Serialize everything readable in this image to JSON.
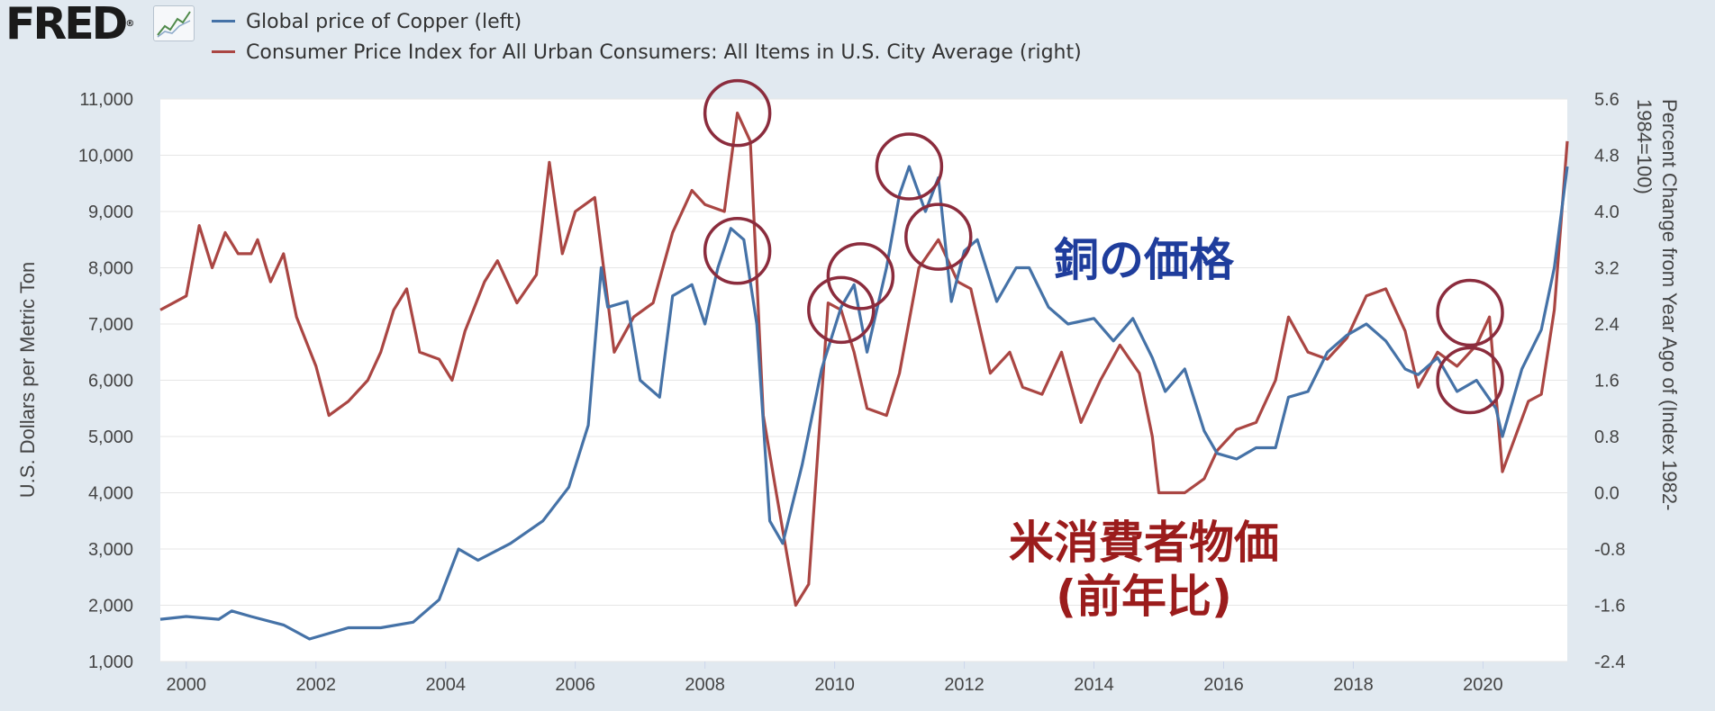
{
  "logo": {
    "text": "FRED",
    "reg": "®"
  },
  "legend": [
    {
      "label": "Global price of Copper (left)",
      "color": "#4572a7"
    },
    {
      "label": "Consumer Price Index for All Urban Consumers: All Items in U.S. City Average (right)",
      "color": "#aa4643"
    }
  ],
  "chart_data": {
    "type": "line",
    "x_ticks": [
      "2000",
      "2002",
      "2004",
      "2006",
      "2008",
      "2010",
      "2012",
      "2014",
      "2016",
      "2018",
      "2020"
    ],
    "xlim": [
      1999.6,
      2021.3
    ],
    "left_axis": {
      "title": "U.S. Dollars per Metric Ton",
      "ylim": [
        1000,
        11000
      ],
      "ticks": [
        "1,000",
        "2,000",
        "3,000",
        "4,000",
        "5,000",
        "6,000",
        "7,000",
        "8,000",
        "9,000",
        "10,000",
        "11,000"
      ]
    },
    "right_axis": {
      "title_line1": "Percent Change from Year Ago of (Index 1982-",
      "title_line2": "1984=100)",
      "ylim": [
        -2.4,
        5.6
      ],
      "ticks": [
        "-2.4",
        "-1.6",
        "-0.8",
        "0.0",
        "0.8",
        "1.6",
        "2.4",
        "3.2",
        "4.0",
        "4.8",
        "5.6"
      ]
    },
    "series": [
      {
        "name": "Global price of Copper (left)",
        "axis": "left",
        "color": "#4572a7",
        "points": [
          [
            1999.6,
            1750
          ],
          [
            2000.0,
            1800
          ],
          [
            2000.5,
            1750
          ],
          [
            2000.7,
            1900
          ],
          [
            2001.0,
            1800
          ],
          [
            2001.5,
            1650
          ],
          [
            2001.9,
            1400
          ],
          [
            2002.5,
            1600
          ],
          [
            2003.0,
            1600
          ],
          [
            2003.5,
            1700
          ],
          [
            2003.9,
            2100
          ],
          [
            2004.2,
            3000
          ],
          [
            2004.5,
            2800
          ],
          [
            2005.0,
            3100
          ],
          [
            2005.5,
            3500
          ],
          [
            2005.9,
            4100
          ],
          [
            2006.2,
            5200
          ],
          [
            2006.4,
            8000
          ],
          [
            2006.5,
            7300
          ],
          [
            2006.8,
            7400
          ],
          [
            2007.0,
            6000
          ],
          [
            2007.3,
            5700
          ],
          [
            2007.5,
            7500
          ],
          [
            2007.8,
            7700
          ],
          [
            2008.0,
            7000
          ],
          [
            2008.2,
            8000
          ],
          [
            2008.4,
            8700
          ],
          [
            2008.6,
            8500
          ],
          [
            2008.8,
            7000
          ],
          [
            2009.0,
            3500
          ],
          [
            2009.2,
            3100
          ],
          [
            2009.5,
            4500
          ],
          [
            2009.8,
            6200
          ],
          [
            2010.1,
            7300
          ],
          [
            2010.3,
            7700
          ],
          [
            2010.5,
            6500
          ],
          [
            2010.8,
            8000
          ],
          [
            2011.0,
            9300
          ],
          [
            2011.15,
            9800
          ],
          [
            2011.4,
            9000
          ],
          [
            2011.6,
            9600
          ],
          [
            2011.8,
            7400
          ],
          [
            2012.0,
            8300
          ],
          [
            2012.2,
            8500
          ],
          [
            2012.5,
            7400
          ],
          [
            2012.8,
            8000
          ],
          [
            2013.0,
            8000
          ],
          [
            2013.3,
            7300
          ],
          [
            2013.6,
            7000
          ],
          [
            2014.0,
            7100
          ],
          [
            2014.3,
            6700
          ],
          [
            2014.6,
            7100
          ],
          [
            2014.9,
            6400
          ],
          [
            2015.1,
            5800
          ],
          [
            2015.4,
            6200
          ],
          [
            2015.7,
            5100
          ],
          [
            2015.9,
            4700
          ],
          [
            2016.2,
            4600
          ],
          [
            2016.5,
            4800
          ],
          [
            2016.8,
            4800
          ],
          [
            2017.0,
            5700
          ],
          [
            2017.3,
            5800
          ],
          [
            2017.6,
            6500
          ],
          [
            2017.9,
            6800
          ],
          [
            2018.2,
            7000
          ],
          [
            2018.5,
            6700
          ],
          [
            2018.8,
            6200
          ],
          [
            2019.0,
            6100
          ],
          [
            2019.3,
            6400
          ],
          [
            2019.6,
            5800
          ],
          [
            2019.9,
            6000
          ],
          [
            2020.2,
            5500
          ],
          [
            2020.3,
            5000
          ],
          [
            2020.6,
            6200
          ],
          [
            2020.9,
            6900
          ],
          [
            2021.1,
            8000
          ],
          [
            2021.3,
            9800
          ]
        ]
      },
      {
        "name": "Consumer Price Index for All Urban Consumers: All Items in U.S. City Average (right)",
        "axis": "right",
        "color": "#aa4643",
        "points": [
          [
            1999.6,
            2.6
          ],
          [
            2000.0,
            2.8
          ],
          [
            2000.2,
            3.8
          ],
          [
            2000.4,
            3.2
          ],
          [
            2000.6,
            3.7
          ],
          [
            2000.8,
            3.4
          ],
          [
            2001.0,
            3.4
          ],
          [
            2001.1,
            3.6
          ],
          [
            2001.3,
            3.0
          ],
          [
            2001.5,
            3.4
          ],
          [
            2001.7,
            2.5
          ],
          [
            2002.0,
            1.8
          ],
          [
            2002.2,
            1.1
          ],
          [
            2002.5,
            1.3
          ],
          [
            2002.8,
            1.6
          ],
          [
            2003.0,
            2.0
          ],
          [
            2003.2,
            2.6
          ],
          [
            2003.4,
            2.9
          ],
          [
            2003.6,
            2.0
          ],
          [
            2003.9,
            1.9
          ],
          [
            2004.1,
            1.6
          ],
          [
            2004.3,
            2.3
          ],
          [
            2004.6,
            3.0
          ],
          [
            2004.8,
            3.3
          ],
          [
            2005.1,
            2.7
          ],
          [
            2005.4,
            3.1
          ],
          [
            2005.6,
            4.7
          ],
          [
            2005.8,
            3.4
          ],
          [
            2006.0,
            4.0
          ],
          [
            2006.3,
            4.2
          ],
          [
            2006.6,
            2.0
          ],
          [
            2006.9,
            2.5
          ],
          [
            2007.2,
            2.7
          ],
          [
            2007.5,
            3.7
          ],
          [
            2007.8,
            4.3
          ],
          [
            2008.0,
            4.1
          ],
          [
            2008.3,
            4.0
          ],
          [
            2008.5,
            5.4
          ],
          [
            2008.7,
            5.0
          ],
          [
            2008.9,
            1.1
          ],
          [
            2009.1,
            0.0
          ],
          [
            2009.4,
            -1.6
          ],
          [
            2009.6,
            -1.3
          ],
          [
            2009.9,
            2.7
          ],
          [
            2010.1,
            2.6
          ],
          [
            2010.3,
            2.0
          ],
          [
            2010.5,
            1.2
          ],
          [
            2010.8,
            1.1
          ],
          [
            2011.0,
            1.7
          ],
          [
            2011.3,
            3.2
          ],
          [
            2011.6,
            3.6
          ],
          [
            2011.9,
            3.0
          ],
          [
            2012.1,
            2.9
          ],
          [
            2012.4,
            1.7
          ],
          [
            2012.7,
            2.0
          ],
          [
            2012.9,
            1.5
          ],
          [
            2013.2,
            1.4
          ],
          [
            2013.5,
            2.0
          ],
          [
            2013.8,
            1.0
          ],
          [
            2014.1,
            1.6
          ],
          [
            2014.4,
            2.1
          ],
          [
            2014.7,
            1.7
          ],
          [
            2014.9,
            0.8
          ],
          [
            2015.0,
            0.0
          ],
          [
            2015.4,
            0.0
          ],
          [
            2015.7,
            0.2
          ],
          [
            2015.9,
            0.6
          ],
          [
            2016.2,
            0.9
          ],
          [
            2016.5,
            1.0
          ],
          [
            2016.8,
            1.6
          ],
          [
            2017.0,
            2.5
          ],
          [
            2017.3,
            2.0
          ],
          [
            2017.6,
            1.9
          ],
          [
            2017.9,
            2.2
          ],
          [
            2018.2,
            2.8
          ],
          [
            2018.5,
            2.9
          ],
          [
            2018.8,
            2.3
          ],
          [
            2019.0,
            1.5
          ],
          [
            2019.3,
            2.0
          ],
          [
            2019.6,
            1.8
          ],
          [
            2019.9,
            2.1
          ],
          [
            2020.1,
            2.5
          ],
          [
            2020.3,
            0.3
          ],
          [
            2020.5,
            0.8
          ],
          [
            2020.7,
            1.3
          ],
          [
            2020.9,
            1.4
          ],
          [
            2021.1,
            2.6
          ],
          [
            2021.3,
            5.0
          ]
        ]
      }
    ],
    "annotations": [
      {
        "text": "銅の価格",
        "color": "#1f3d9c"
      },
      {
        "text": "米消費者物価",
        "color": "#9b1c1c"
      },
      {
        "text": "(前年比)",
        "color": "#9b1c1c"
      }
    ],
    "circles_at": [
      [
        2008.5,
        5.4,
        "right"
      ],
      [
        2008.5,
        8300,
        "left"
      ],
      [
        2010.1,
        7250,
        "left"
      ],
      [
        2010.4,
        7850,
        "left"
      ],
      [
        2011.15,
        9800,
        "left"
      ],
      [
        2011.6,
        8550,
        "left"
      ],
      [
        2019.8,
        7200,
        "left"
      ],
      [
        2019.8,
        6000,
        "left"
      ]
    ],
    "circle_color": "#8b2c3d"
  }
}
